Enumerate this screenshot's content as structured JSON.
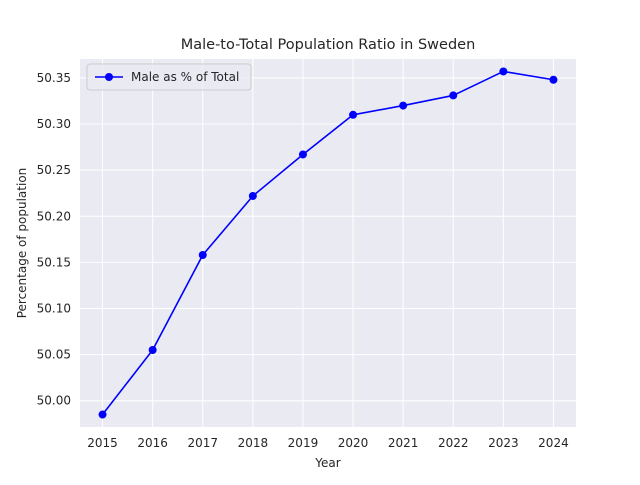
{
  "chart_data": {
    "type": "line",
    "title": "Male-to-Total Population Ratio in Sweden",
    "xlabel": "Year",
    "ylabel": "Percentage of population",
    "x": [
      2015,
      2016,
      2017,
      2018,
      2019,
      2020,
      2021,
      2022,
      2023,
      2024
    ],
    "series": [
      {
        "name": "Male as % of Total",
        "color": "#0000ff",
        "marker": "circle",
        "values": [
          49.985,
          50.055,
          50.158,
          50.222,
          50.267,
          50.31,
          50.32,
          50.331,
          50.357,
          50.348
        ]
      }
    ],
    "xlim": [
      2014.55,
      2024.45
    ],
    "ylim": [
      49.9715,
      50.3705
    ],
    "yticks": [
      50.0,
      50.05,
      50.1,
      50.15,
      50.2,
      50.25,
      50.3,
      50.35
    ],
    "ytick_labels": [
      "50.00",
      "50.05",
      "50.10",
      "50.15",
      "50.20",
      "50.25",
      "50.30",
      "50.35"
    ],
    "xticks": [
      2015,
      2016,
      2017,
      2018,
      2019,
      2020,
      2021,
      2022,
      2023,
      2024
    ],
    "xtick_labels": [
      "2015",
      "2016",
      "2017",
      "2018",
      "2019",
      "2020",
      "2021",
      "2022",
      "2023",
      "2024"
    ],
    "grid": true,
    "legend_position": "upper-left",
    "background_color": "#eaeaf2",
    "grid_color": "#ffffff"
  }
}
